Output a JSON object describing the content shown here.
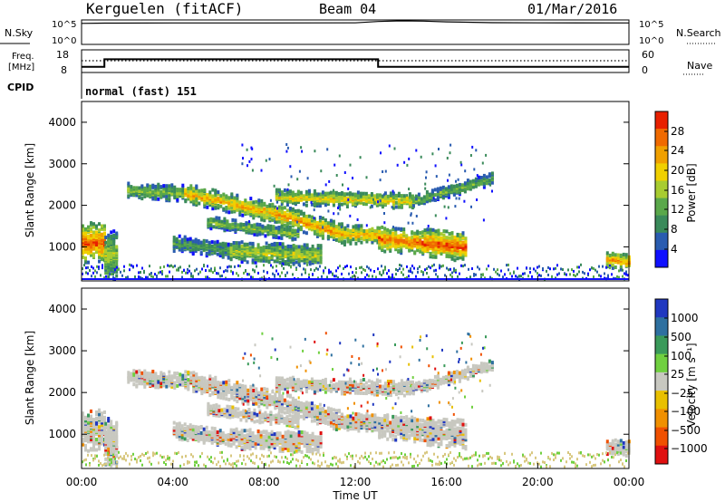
{
  "header": {
    "station": "Kerguelen (fitACF)",
    "beam": "Beam 04",
    "date": "01/Mar/2016"
  },
  "top_panels": {
    "nsky_label": "N.Sky",
    "nsearch_label": "N.Search",
    "freq_label_1": "Freq.",
    "freq_label_2": "[MHz]",
    "nave_label": "Nave",
    "cpid_label": "CPID",
    "cpid_value": "normal (fast) 151",
    "noise_ticks_left": [
      "10^5",
      "10^0"
    ],
    "noise_ticks_right": [
      "10^5",
      "10^0"
    ],
    "freq_ticks": [
      "18",
      "8"
    ],
    "nave_ticks": [
      "60",
      "0"
    ]
  },
  "colors": {
    "power": [
      "#1010ff",
      "#2a5cb0",
      "#3a8a5a",
      "#5aa84a",
      "#a8cc30",
      "#f0d000",
      "#f0a000",
      "#f06a00",
      "#e82000"
    ],
    "velocity": [
      "#2038c0",
      "#2e70a0",
      "#3a9a5a",
      "#70d040",
      "#c8c8c0",
      "#e8c000",
      "#f09000",
      "#f05000",
      "#e01010"
    ]
  },
  "chart_data": [
    {
      "type": "line",
      "title": "",
      "series": [
        {
          "name": "N.Sky",
          "x": [
            0,
            1,
            4,
            8,
            12,
            13,
            14,
            15,
            16,
            18,
            20,
            24
          ],
          "y": [
            25000,
            28000,
            30000,
            30000,
            32000,
            60000,
            80000,
            70000,
            50000,
            35000,
            32000,
            30000
          ]
        },
        {
          "name": "N.Search",
          "x": [
            0,
            24
          ],
          "y": [
            30000,
            30000
          ]
        }
      ],
      "xlim": [
        0,
        24
      ],
      "ylabel": "N.Sky",
      "scale": "log"
    },
    {
      "type": "line",
      "series": [
        {
          "name": "Freq.",
          "x": [
            0,
            1,
            1,
            13,
            13,
            24
          ],
          "y": [
            10,
            10,
            14,
            14,
            10,
            10
          ]
        },
        {
          "name": "Nave",
          "x": [
            0,
            24
          ],
          "y": [
            40,
            40
          ]
        }
      ],
      "xlim": [
        0,
        24
      ],
      "ylim_freq": [
        8,
        18
      ],
      "ylim_nave": [
        0,
        60
      ]
    },
    {
      "type": "heatmap",
      "quantity": "Power",
      "xlabel": "",
      "ylabel": "Slant Range [km]",
      "colorbar_label": "Power [dB]",
      "colorbar_ticks": [
        "28",
        "24",
        "20",
        "16",
        "12",
        "8",
        "4"
      ],
      "xlim": [
        0,
        24
      ],
      "ylim": [
        180,
        4500
      ],
      "yticks": [
        "4000",
        "3000",
        "2000",
        "1000"
      ]
    },
    {
      "type": "heatmap",
      "quantity": "Velocity",
      "xlabel": "Time UT",
      "ylabel": "Slant Range [km]",
      "colorbar_label": "Velocity [m s⁻¹]",
      "colorbar_ticks": [
        "1000",
        "500",
        "100",
        "25",
        "−25",
        "−100",
        "−500",
        "−1000"
      ],
      "xlim": [
        0,
        24
      ],
      "ylim": [
        180,
        4500
      ],
      "yticks": [
        "4000",
        "3000",
        "2000",
        "1000"
      ],
      "xticks": [
        "00:00",
        "04:00",
        "08:00",
        "12:00",
        "16:00",
        "20:00",
        "00:00"
      ]
    }
  ]
}
